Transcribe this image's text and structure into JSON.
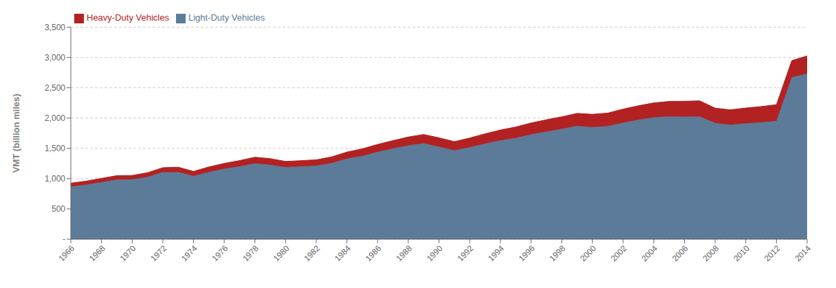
{
  "chart_data": {
    "type": "area",
    "stacked": true,
    "x": [
      1966,
      1967,
      1968,
      1969,
      1970,
      1971,
      1972,
      1973,
      1974,
      1975,
      1976,
      1977,
      1978,
      1979,
      1980,
      1981,
      1982,
      1983,
      1984,
      1985,
      1986,
      1987,
      1988,
      1989,
      1990,
      1991,
      1992,
      1993,
      1994,
      1995,
      1996,
      1997,
      1998,
      1999,
      2000,
      2001,
      2002,
      2003,
      2004,
      2005,
      2006,
      2007,
      2008,
      2009,
      2010,
      2011,
      2012,
      2013,
      2014
    ],
    "series": [
      {
        "name": "Light-Duty Vehicles",
        "color": "#5b7b99",
        "values": [
          869,
          900,
          943,
          984,
          987,
          1028,
          1106,
          1108,
          1043,
          1109,
          1163,
          1204,
          1252,
          1228,
          1188,
          1201,
          1214,
          1258,
          1329,
          1375,
          1441,
          1497,
          1548,
          1582,
          1527,
          1467,
          1519,
          1578,
          1631,
          1672,
          1730,
          1776,
          1820,
          1869,
          1850,
          1868,
          1924,
          1971,
          2010,
          2026,
          2024,
          2025,
          1918,
          1889,
          1912,
          1930,
          1953,
          2671,
          2731
        ]
      },
      {
        "name": "Heavy-Duty Vehicles",
        "color": "#b22222",
        "values": [
          57,
          59,
          62,
          65,
          66,
          70,
          75,
          81,
          77,
          84,
          89,
          94,
          102,
          102,
          96,
          96,
          97,
          101,
          110,
          117,
          124,
          131,
          140,
          147,
          148,
          144,
          152,
          162,
          172,
          180,
          189,
          196,
          201,
          209,
          213,
          214,
          224,
          232,
          241,
          249,
          254,
          259,
          247,
          247,
          254,
          260,
          268,
          278,
          295
        ]
      }
    ],
    "ylabel": "VMT (billion miles)",
    "xlim": [
      1966,
      2014
    ],
    "xticks": [
      1966,
      1968,
      1970,
      1972,
      1974,
      1976,
      1978,
      1980,
      1982,
      1984,
      1986,
      1988,
      1990,
      1992,
      1994,
      1996,
      1998,
      2000,
      2002,
      2004,
      2006,
      2008,
      2010,
      2012,
      2014
    ],
    "ylim": [
      0,
      3500
    ],
    "yticks": [
      {
        "value": 0,
        "label": "-"
      },
      500,
      {
        "value": 1000,
        "label": "1,000"
      },
      {
        "value": 1500,
        "label": "1,500"
      },
      {
        "value": 2000,
        "label": "2,000"
      },
      {
        "value": 2500,
        "label": "2,500"
      },
      {
        "value": 3000,
        "label": "3,000"
      },
      {
        "value": 3500,
        "label": "3,500"
      }
    ],
    "grid": true,
    "legend": "upper left"
  }
}
